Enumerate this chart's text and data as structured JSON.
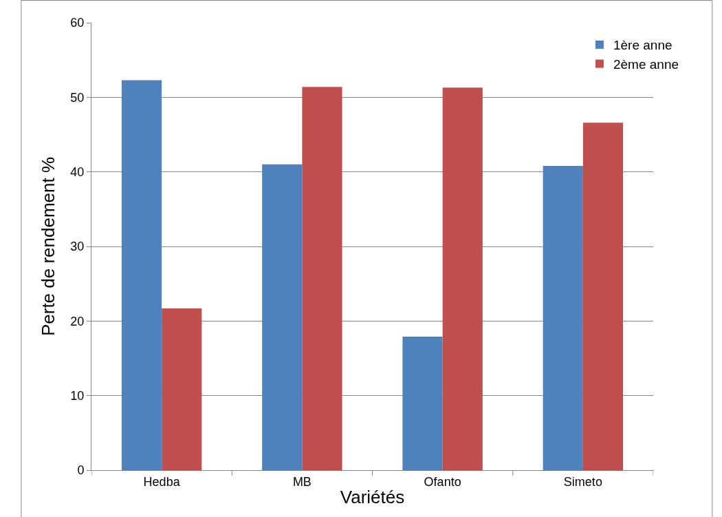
{
  "chart_data": {
    "type": "bar",
    "xlabel": "Variétés",
    "ylabel": "Perte de rendement %",
    "categories": [
      "Hedba",
      "MB",
      "Ofanto",
      "Simeto"
    ],
    "series": [
      {
        "name": "1ère anne",
        "color": "#4f81bd",
        "values": [
          52.3,
          41.0,
          17.9,
          40.8
        ]
      },
      {
        "name": "2ème anne",
        "color": "#c0504d",
        "values": [
          21.7,
          51.4,
          51.3,
          46.6
        ]
      }
    ],
    "ylim": [
      0,
      60
    ],
    "yticks": [
      0,
      10,
      20,
      30,
      40,
      50,
      60
    ],
    "grid": "y",
    "legend": "top right"
  }
}
